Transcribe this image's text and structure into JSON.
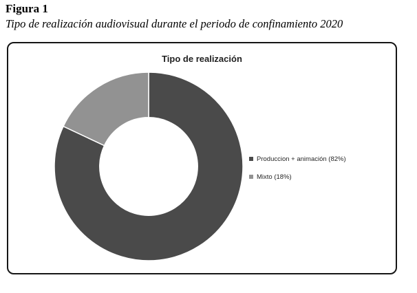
{
  "figure": {
    "label": "Figura 1",
    "caption": "Tipo de realización audiovisual durante el periodo de confinamiento 2020"
  },
  "chart_data": {
    "type": "pie",
    "subtype": "donut",
    "title": "Tipo de realización",
    "categories": [
      "Produccion + animación",
      "Mixto"
    ],
    "values": [
      82,
      18
    ],
    "unit": "%",
    "colors": [
      "#4a4a4a",
      "#929292"
    ],
    "legend": [
      {
        "label": "Produccion + animación (82%)",
        "color": "#4a4a4a"
      },
      {
        "label": "Mixto (18%)",
        "color": "#929292"
      }
    ],
    "legend_position": "right",
    "start_angle_deg": 0,
    "direction": "clockwise",
    "donut_hole_ratio": 0.52,
    "divider_color": "#ffffff"
  }
}
